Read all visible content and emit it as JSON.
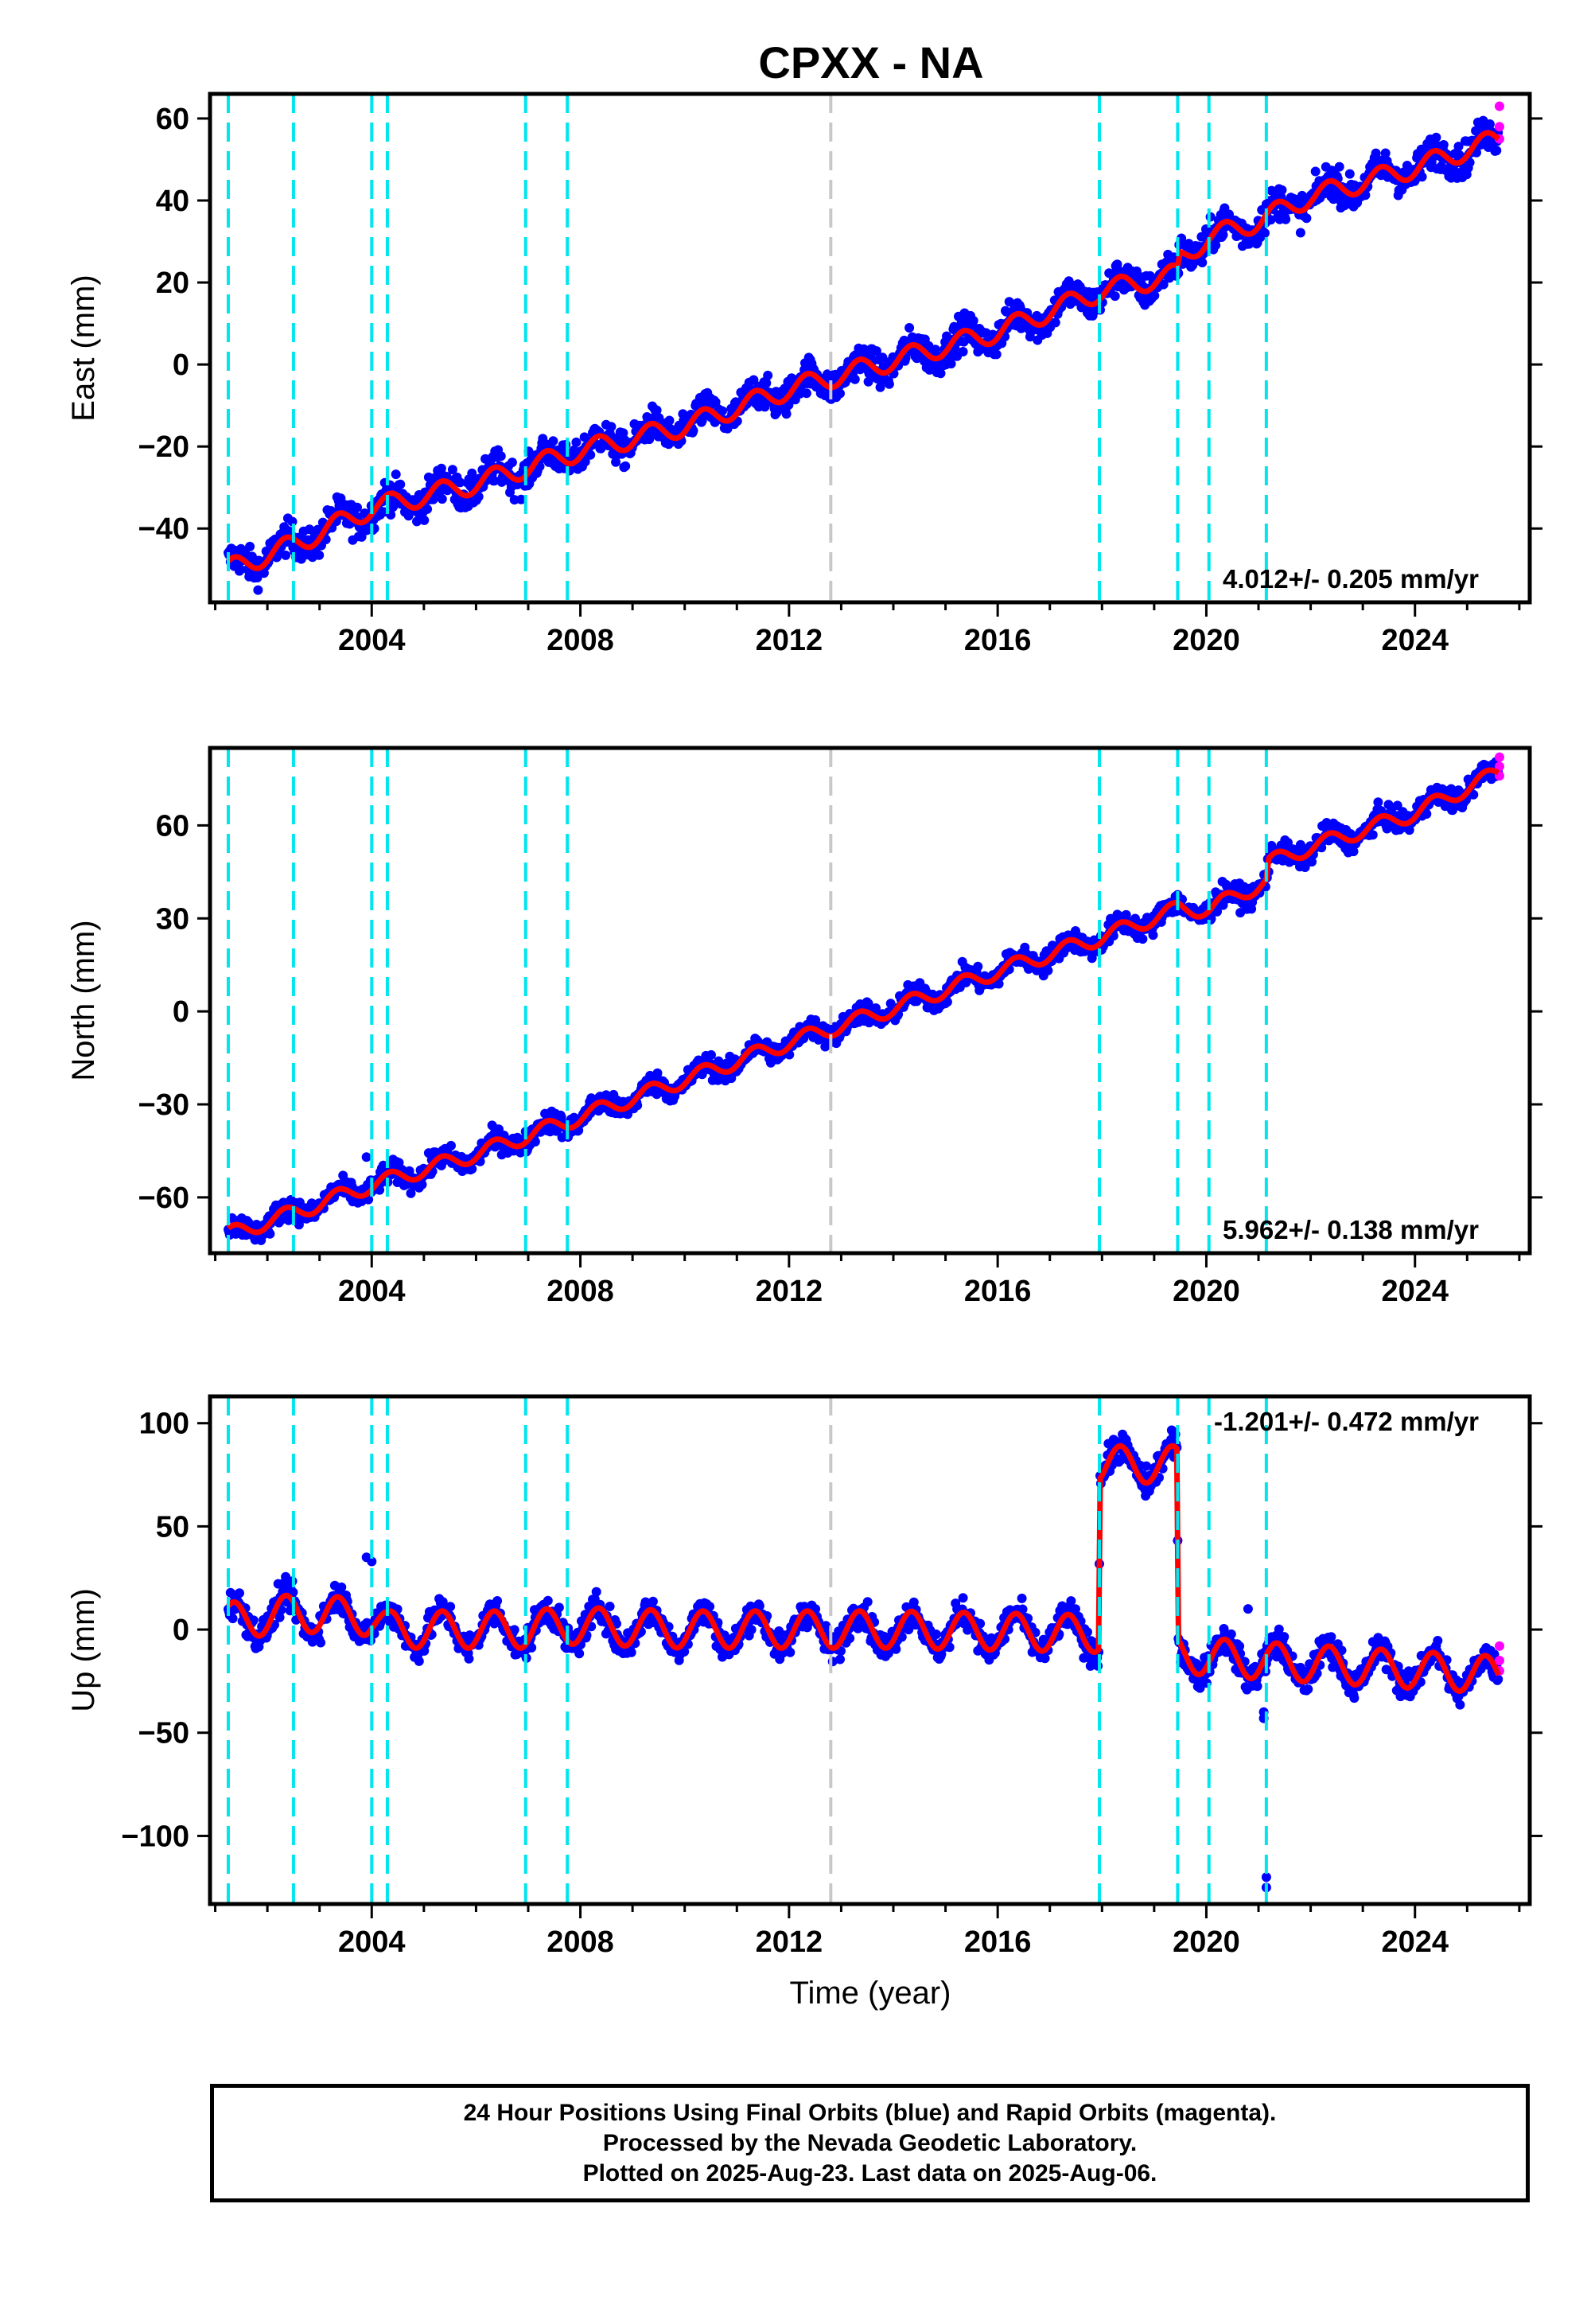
{
  "chart_data": {
    "type": "scatter",
    "title": "CPXX - NA",
    "xlabel": "Time (year)",
    "x_range": [
      2000.9,
      2026.2
    ],
    "x_ticks": [
      2004,
      2008,
      2012,
      2016,
      2020,
      2024
    ],
    "x_minor_ticks": [
      2001,
      2002,
      2003,
      2005,
      2006,
      2007,
      2009,
      2010,
      2011,
      2013,
      2014,
      2015,
      2017,
      2018,
      2019,
      2021,
      2022,
      2023,
      2025,
      2026
    ],
    "x_tick_labels": [
      "2004",
      "2008",
      "2012",
      "2016",
      "2020",
      "2024"
    ],
    "equipment_change_lines": [
      2001.25,
      2002.5,
      2004.0,
      2004.3,
      2006.95,
      2007.75,
      2017.95,
      2019.45,
      2020.05,
      2021.15
    ],
    "reference_line": 2012.8,
    "last_data": 2025.6,
    "colors": {
      "final_orbits": "#0000ff",
      "rapid_orbits": "#ff00ff",
      "model": "#ff0000",
      "equipment_change": "#00e5ee",
      "reference": "#c8c8c8"
    },
    "panels": [
      {
        "ylabel": "East (mm)",
        "ylim": [
          -58,
          66
        ],
        "y_ticks": [
          -40,
          -20,
          0,
          20,
          40,
          60
        ],
        "y_tick_labels": [
          "−40",
          "−20",
          "0",
          "20",
          "40",
          "60"
        ],
        "rate_label": "4.012+/- 0.205 mm/yr",
        "rate_position": "bottom-right",
        "trend_points": [
          [
            2001.25,
            -50
          ],
          [
            2002.5,
            -44
          ],
          [
            2004.0,
            -35
          ],
          [
            2006.0,
            -29
          ],
          [
            2008.0,
            -21
          ],
          [
            2010.0,
            -15
          ],
          [
            2012.0,
            -6
          ],
          [
            2014.0,
            1
          ],
          [
            2016.0,
            8
          ],
          [
            2018.0,
            18
          ],
          [
            2019.45,
            22
          ],
          [
            2019.5,
            26
          ],
          [
            2020.05,
            31
          ],
          [
            2021.0,
            35
          ],
          [
            2022.0,
            41
          ],
          [
            2024.0,
            48
          ],
          [
            2025.6,
            55
          ]
        ],
        "seasonal_amplitude": 2.5,
        "scatter_spread": 4,
        "outliers": [],
        "rapid_points": [
          [
            2025.62,
            63
          ],
          [
            2025.62,
            58
          ],
          [
            2025.62,
            55
          ]
        ]
      },
      {
        "ylabel": "North (mm)",
        "ylim": [
          -78,
          85
        ],
        "y_ticks": [
          -60,
          -30,
          0,
          30,
          60
        ],
        "y_tick_labels": [
          "−60",
          "−30",
          "0",
          "30",
          "60"
        ],
        "rate_label": "5.962+/- 0.138 mm/yr",
        "rate_position": "bottom-right",
        "trend_points": [
          [
            2001.25,
            -72
          ],
          [
            2002.5,
            -65
          ],
          [
            2004.0,
            -56
          ],
          [
            2006.0,
            -46
          ],
          [
            2008.0,
            -34
          ],
          [
            2010.0,
            -22
          ],
          [
            2012.0,
            -10
          ],
          [
            2014.0,
            1
          ],
          [
            2016.0,
            13
          ],
          [
            2018.0,
            24
          ],
          [
            2019.45,
            33
          ],
          [
            2020.05,
            33
          ],
          [
            2021.15,
            42
          ],
          [
            2021.2,
            48
          ],
          [
            2022.0,
            53
          ],
          [
            2024.0,
            64
          ],
          [
            2025.6,
            77
          ]
        ],
        "seasonal_amplitude": 2.5,
        "scatter_spread": 3.5,
        "outliers": [
          [
            2003.9,
            -47
          ]
        ],
        "rapid_points": [
          [
            2025.62,
            82
          ],
          [
            2025.62,
            79
          ],
          [
            2025.62,
            76
          ]
        ]
      },
      {
        "ylabel": "Up (mm)",
        "ylim": [
          -133,
          113
        ],
        "y_ticks": [
          -100,
          -50,
          0,
          50,
          100
        ],
        "y_tick_labels": [
          "−100",
          "−50",
          "0",
          "50",
          "100"
        ],
        "rate_label": "-1.201+/- 0.472 mm/yr",
        "rate_position": "top-right",
        "trend_points": [
          [
            2001.25,
            4
          ],
          [
            2002.5,
            8
          ],
          [
            2004.0,
            6
          ],
          [
            2004.3,
            0
          ],
          [
            2006.95,
            0
          ],
          [
            2007.75,
            2
          ],
          [
            2010.0,
            0
          ],
          [
            2012.0,
            0
          ],
          [
            2014.0,
            0
          ],
          [
            2016.0,
            -1
          ],
          [
            2017.94,
            -2
          ],
          [
            2017.96,
            80
          ],
          [
            2019.44,
            80
          ],
          [
            2019.46,
            -12
          ],
          [
            2021.0,
            -15
          ],
          [
            2023.0,
            -18
          ],
          [
            2025.6,
            -22
          ]
        ],
        "seasonal_amplitude": 9,
        "scatter_spread": 7,
        "outliers": [
          [
            2003.9,
            35
          ],
          [
            2004.0,
            33
          ],
          [
            2020.8,
            10
          ],
          [
            2021.1,
            -40
          ],
          [
            2021.1,
            -43
          ],
          [
            2021.15,
            -120
          ],
          [
            2021.15,
            -125
          ]
        ],
        "rapid_points": [
          [
            2025.62,
            -8
          ],
          [
            2025.62,
            -15
          ],
          [
            2025.62,
            -20
          ]
        ]
      }
    ],
    "footer_lines": [
      "24 Hour Positions Using Final Orbits (blue) and Rapid Orbits (magenta).",
      "Processed by the Nevada Geodetic Laboratory.",
      "Plotted on 2025-Aug-23. Last data on 2025-Aug-06."
    ]
  }
}
